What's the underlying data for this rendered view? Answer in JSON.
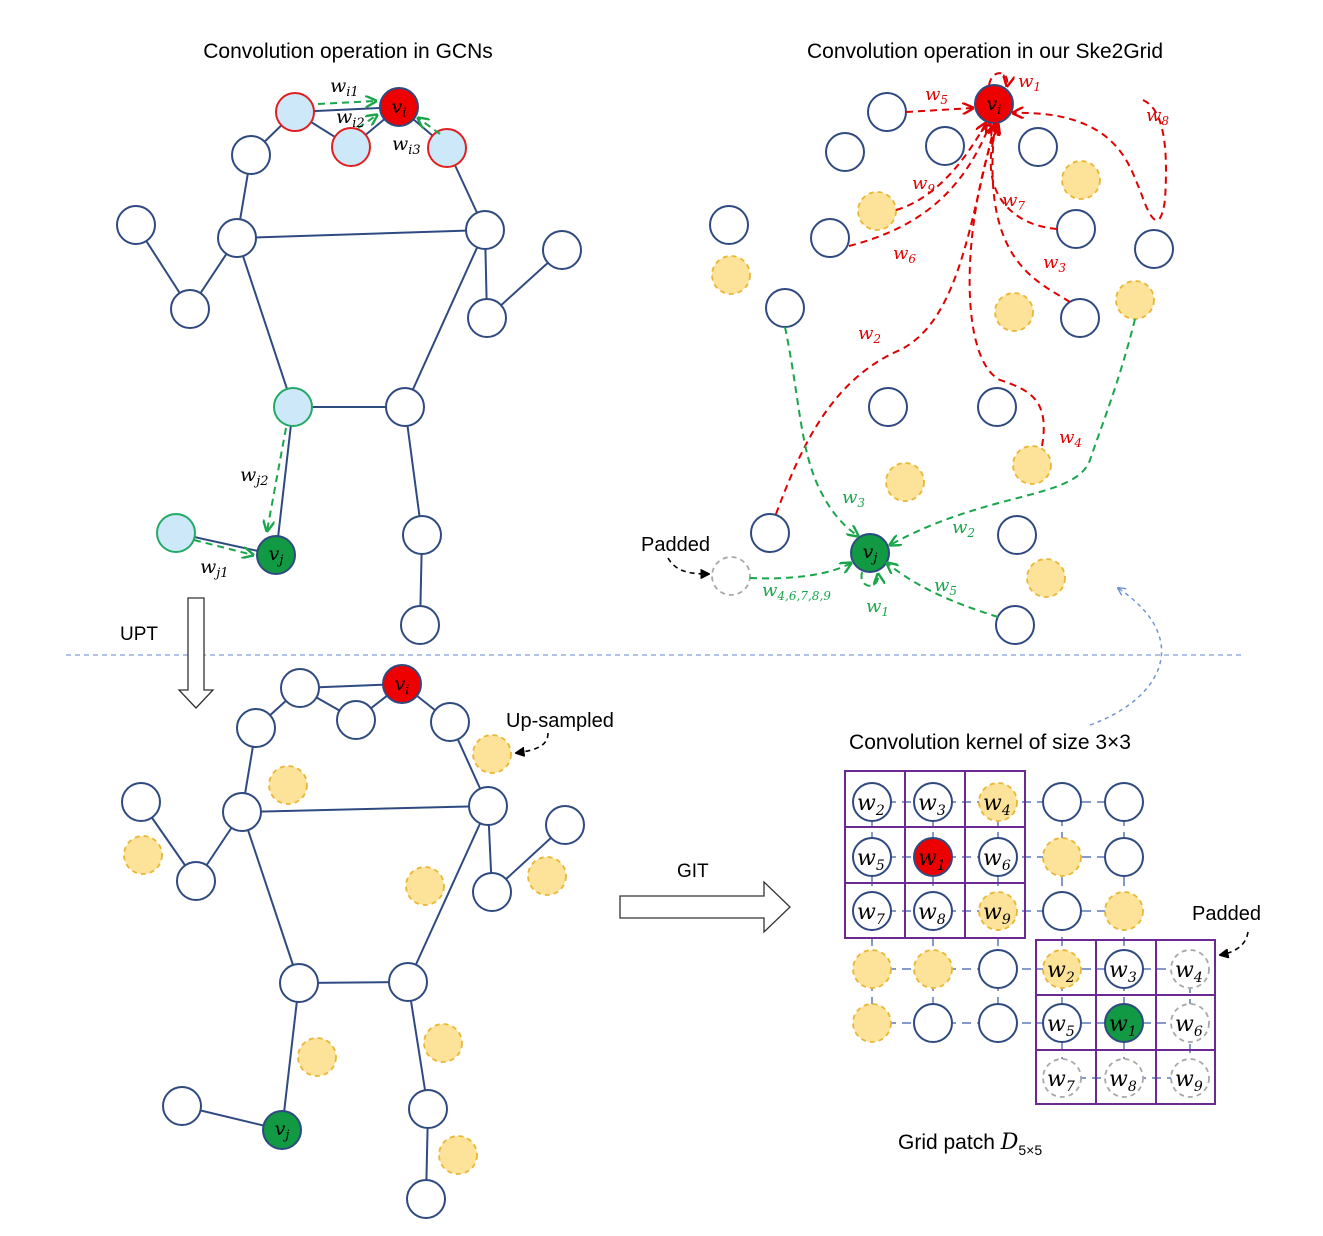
{
  "titles": {
    "gcn": "Convolution operation in GCNs",
    "ske2grid": "Convolution operation in our Ske2Grid",
    "kernel": "Convolution kernel of size 3×3",
    "patch_prefix": "Grid patch ",
    "patch_symbol": "D",
    "patch_sub": "5×5"
  },
  "labels": {
    "upt": "UPT",
    "git": "GIT",
    "upsampled": "Up-sampled",
    "padded_top": "Padded",
    "padded_grid": "Padded",
    "v": "v",
    "i": "i",
    "j": "j",
    "w": "w",
    "w_i1": "i1",
    "w_i2": "i2",
    "w_i3": "i3",
    "w_j1": "j1",
    "w_j2": "j2",
    "red_weights": [
      "1",
      "2",
      "3",
      "4",
      "5",
      "6",
      "7",
      "8",
      "9"
    ],
    "green_weights": [
      "1",
      "2",
      "3",
      "5"
    ],
    "green_multi": "4,6,7,8,9",
    "kernel_red": [
      "2",
      "3",
      "4",
      "5",
      "1",
      "6",
      "7",
      "8",
      "9"
    ],
    "kernel_green": [
      "2",
      "3",
      "4",
      "5",
      "1",
      "6",
      "7",
      "8",
      "9"
    ]
  },
  "colors": {
    "edge": "#2f4a80",
    "target_i": "#ee0000",
    "target_j": "#119944",
    "neighbor": "#cde8f8",
    "upsampled_fill": "#fde39a",
    "upsampled_stroke": "#e9b735",
    "kernel": "#6b2a92",
    "red_arrow": "#e00000",
    "green_arrow": "#19a64a"
  }
}
